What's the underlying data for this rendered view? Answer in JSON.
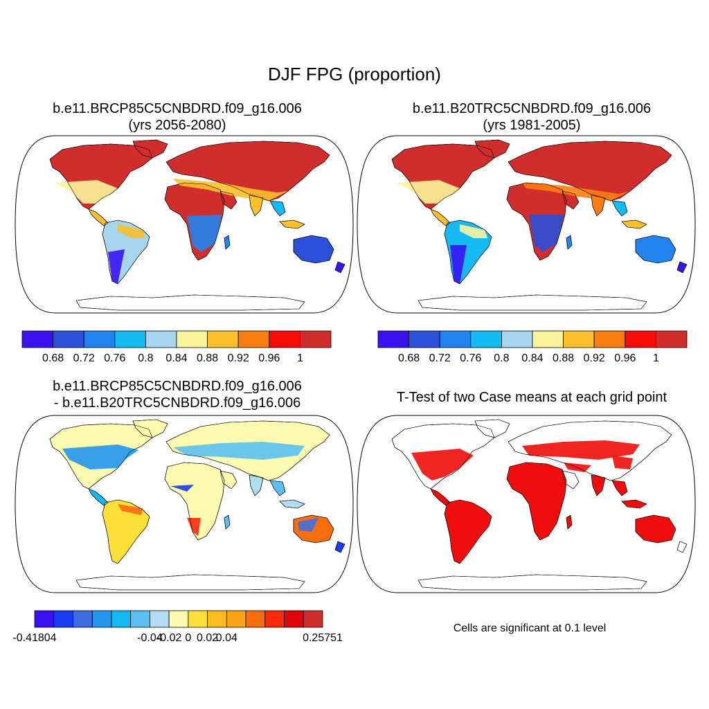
{
  "title": "DJF FPG (proportion)",
  "panels": [
    {
      "id": "future",
      "title_line1": "b.e11.BRCP85C5CNBDRD.f09_g16.006",
      "title_line2": "(yrs 2056-2080)",
      "colorbar": {
        "colors": [
          "#3a12f2",
          "#2a4fd8",
          "#2184ee",
          "#16baf2",
          "#a8d5ee",
          "#fbf49b",
          "#fbc02b",
          "#fb7d0f",
          "#f80a0a",
          "#d22d2d"
        ],
        "labels": [
          "0.68",
          "0.72",
          "0.76",
          "0.8",
          "0.84",
          "0.88",
          "0.92",
          "0.96",
          "1"
        ]
      }
    },
    {
      "id": "historical",
      "title_line1": "b.e11.B20TRC5CNBDRD.f09_g16.006",
      "title_line2": "(yrs 1981-2005)",
      "colorbar": {
        "colors": [
          "#3a12f2",
          "#2a4fd8",
          "#2184ee",
          "#16baf2",
          "#a8d5ee",
          "#fbf49b",
          "#fbc02b",
          "#fb7d0f",
          "#f80a0a",
          "#d22d2d"
        ],
        "labels": [
          "0.68",
          "0.72",
          "0.76",
          "0.8",
          "0.84",
          "0.88",
          "0.92",
          "0.96",
          "1"
        ]
      }
    },
    {
      "id": "difference",
      "title_line1": "b.e11.BRCP85C5CNBDRD.f09_g16.006",
      "title_line2": "- b.e11.B20TRC5CNBDRD.f09_g16.006",
      "colorbar": {
        "colors": [
          "#3a12f2",
          "#1a3cf0",
          "#3f6ee0",
          "#2296ee",
          "#12b8f4",
          "#5cc0ee",
          "#b1dcf2",
          "#fdfbb0",
          "#fde13a",
          "#fbbc1d",
          "#f9a513",
          "#f86d0d",
          "#f82a0a",
          "#e0050a",
          "#d22d2d"
        ],
        "labels": [
          "-0.41804",
          "-0.04",
          "-0.02",
          "0",
          "0.02",
          "0.04",
          "0.25751"
        ]
      }
    },
    {
      "id": "ttest",
      "title_line1": "T-Test of two Case means at each grid point",
      "note": "Cells are significant at 0.1 level"
    }
  ]
}
